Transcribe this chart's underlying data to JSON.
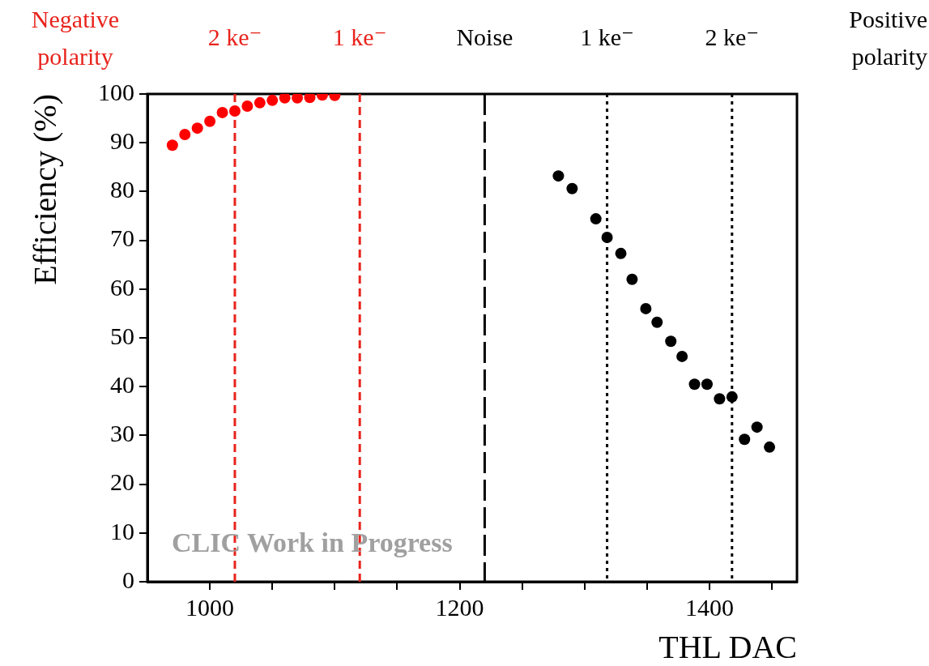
{
  "chart_data": {
    "type": "scatter",
    "xlabel": "THL DAC",
    "ylabel": "Efficiency (%)",
    "xlim": [
      950,
      1470
    ],
    "xticks": [
      1000,
      {
        "value": 1050,
        "label": null
      },
      {
        "value": 1100,
        "label": null
      },
      {
        "value": 1150,
        "label": null
      },
      1200,
      {
        "value": 1250,
        "label": null
      },
      {
        "value": 1300,
        "label": null
      },
      {
        "value": 1350,
        "label": null
      },
      1400,
      {
        "value": 1450,
        "label": null
      }
    ],
    "ylim": [
      0,
      100
    ],
    "yticks": [
      0,
      10,
      20,
      30,
      40,
      50,
      60,
      70,
      80,
      90,
      100
    ],
    "grid": false,
    "legend": false,
    "marker": "circle",
    "series": [
      {
        "color": "#ff0000",
        "x": [
          970,
          980,
          990,
          1000,
          1010,
          1020,
          1030,
          1040,
          1050,
          1060,
          1070,
          1080,
          1090,
          1100
        ],
        "values": [
          89.5,
          91.7,
          93.0,
          94.4,
          96.2,
          96.5,
          97.5,
          98.2,
          98.7,
          99.2,
          99.2,
          99.3,
          99.8,
          99.7
        ]
      },
      {
        "color": "#000000",
        "x": [
          1279,
          1290,
          1309,
          1318,
          1329,
          1338,
          1349,
          1358,
          1369,
          1378,
          1388,
          1398,
          1408,
          1418,
          1428,
          1438,
          1448
        ],
        "values": [
          83.2,
          80.6,
          74.4,
          70.6,
          67.3,
          62.0,
          56.0,
          53.2,
          49.3,
          46.2,
          40.5,
          40.5,
          37.5,
          37.9,
          29.2,
          31.7,
          27.6
        ]
      }
    ],
    "ref_lines": [
      {
        "axis": "x",
        "value": 1020,
        "label": "2 ke⁻",
        "color": "#e8231c",
        "line_style": "dashed"
      },
      {
        "axis": "x",
        "value": 1120,
        "label": "1 ke⁻",
        "color": "#e8231c",
        "line_style": "dashed"
      },
      {
        "axis": "x",
        "value": 1220,
        "label": "Noise",
        "color": "#000000",
        "line_style": "dashed"
      },
      {
        "axis": "x",
        "value": 1318,
        "label": "1 ke⁻",
        "color": "#000000",
        "line_style": "dotted"
      },
      {
        "axis": "x",
        "value": 1418,
        "label": "2 ke⁻",
        "color": "#000000",
        "line_style": "dotted"
      }
    ],
    "annotations": [
      "Negative polarity",
      "Positive polarity",
      "CLIC Work in Progress"
    ]
  }
}
